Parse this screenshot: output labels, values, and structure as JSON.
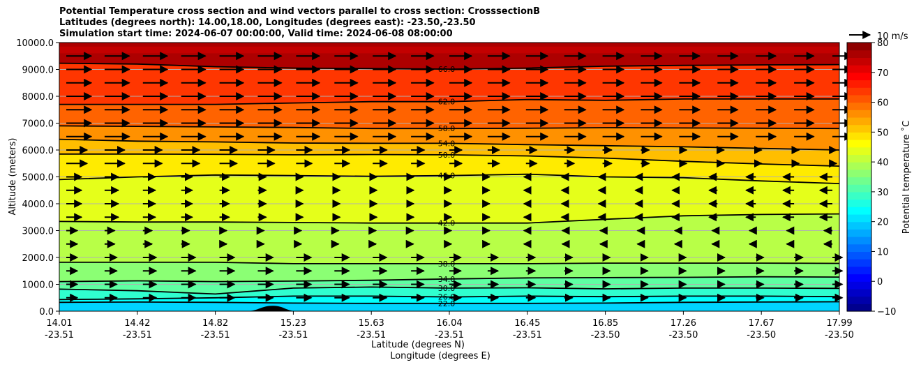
{
  "title_lines": [
    "Potential Temperature cross section and wind vectors parallel to cross section: CrosssectionB",
    "Latitudes (degrees north): 14.00,18.00, Longitudes (degrees east): -23.50,-23.50",
    "Simulation start time: 2024-06-07 00:00:00, Valid time: 2024-06-08 08:00:00"
  ],
  "chart_data": {
    "type": "heatmap",
    "title": "Potential Temperature cross section and wind vectors parallel to cross section: CrosssectionB",
    "xlabel": "Latitude (degrees N)",
    "xlabel2": "Longitude (degrees E)",
    "ylabel": "Altitude (meters)",
    "ylim": [
      0,
      10000
    ],
    "xlim": [
      14.01,
      17.99
    ],
    "y_ticks": [
      "0.0",
      "1000.0",
      "2000.0",
      "3000.0",
      "4000.0",
      "5000.0",
      "6000.0",
      "7000.0",
      "8000.0",
      "9000.0",
      "10000.0"
    ],
    "x_ticks_lat": [
      "14.01",
      "14.42",
      "14.82",
      "15.23",
      "15.63",
      "16.04",
      "16.45",
      "16.85",
      "17.26",
      "17.67",
      "17.99"
    ],
    "x_ticks_lon": [
      "-23.51",
      "-23.51",
      "-23.51",
      "-23.51",
      "-23.51",
      "-23.51",
      "-23.51",
      "-23.50",
      "-23.50",
      "-23.50",
      "-23.50"
    ],
    "colorbar": {
      "label": "Potential temperature ˚C",
      "range": [
        -10,
        80
      ],
      "ticks": [
        "−10",
        "0",
        "10",
        "20",
        "30",
        "40",
        "50",
        "60",
        "70",
        "80"
      ],
      "colormap": "jet"
    },
    "contour_levels": [
      22,
      26,
      30,
      34,
      38,
      42,
      46,
      50,
      54,
      58,
      62,
      66
    ],
    "contour_labels": [
      "22.0",
      "26.0",
      "30.0",
      "34.0",
      "38.0",
      "42.0",
      "46.0",
      "50.0",
      "54.0",
      "58.0",
      "62.0",
      "66.0"
    ],
    "contours": [
      {
        "level": 22,
        "y": [
          330,
          340,
          330,
          300,
          290,
          290,
          290,
          300,
          330,
          340,
          350
        ]
      },
      {
        "level": 26,
        "y": [
          430,
          460,
          500,
          560,
          560,
          530,
          560,
          540,
          560,
          560,
          540
        ]
      },
      {
        "level": 30,
        "y": [
          820,
          760,
          640,
          860,
          900,
          860,
          870,
          830,
          860,
          860,
          850
        ]
      },
      {
        "level": 34,
        "y": [
          1100,
          1130,
          1100,
          1120,
          1150,
          1200,
          1240,
          1250,
          1260,
          1280,
          1270
        ]
      },
      {
        "level": 38,
        "y": [
          1820,
          1820,
          1820,
          1770,
          1770,
          1770,
          1770,
          1790,
          1790,
          1790,
          1780
        ]
      },
      {
        "level": 42,
        "y": [
          3340,
          3320,
          3320,
          3300,
          3280,
          3280,
          3280,
          3420,
          3550,
          3600,
          3620
        ]
      },
      {
        "level": 46,
        "y": [
          4900,
          5000,
          5070,
          5050,
          5020,
          5050,
          5100,
          5000,
          4970,
          4850,
          4750
        ]
      },
      {
        "level": 50,
        "y": [
          5850,
          5850,
          5840,
          5820,
          5830,
          5820,
          5780,
          5700,
          5580,
          5480,
          5400
        ]
      },
      {
        "level": 54,
        "y": [
          6400,
          6330,
          6300,
          6260,
          6250,
          6250,
          6200,
          6160,
          6120,
          6060,
          6000
        ]
      },
      {
        "level": 58,
        "y": [
          6900,
          6880,
          6860,
          6840,
          6800,
          6800,
          6810,
          6830,
          6820,
          6810,
          6800
        ]
      },
      {
        "level": 62,
        "y": [
          7700,
          7700,
          7700,
          7750,
          7800,
          7800,
          7880,
          7850,
          7900,
          7900,
          7900
        ]
      },
      {
        "level": 66,
        "y": [
          9230,
          9200,
          9100,
          9050,
          9030,
          9010,
          9050,
          9120,
          9150,
          9170,
          9180
        ]
      }
    ],
    "terrain": {
      "peak_lat": 15.1,
      "peak_height_m": 200
    },
    "wind_reference": {
      "label": "10 m/s",
      "speed": 10
    }
  }
}
